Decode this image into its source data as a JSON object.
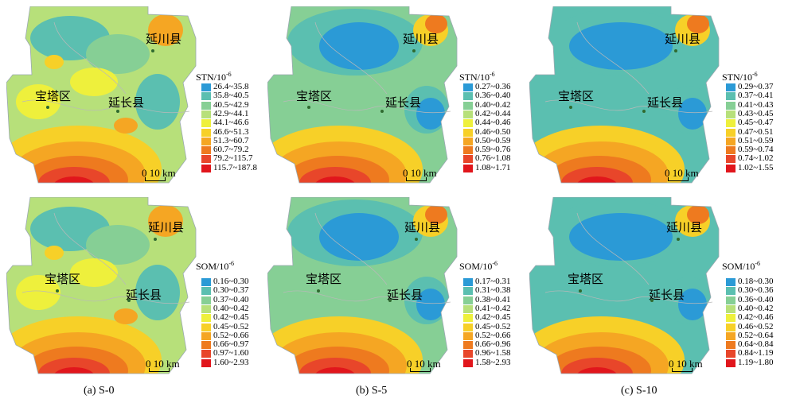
{
  "panels": [
    {
      "id": "S-0",
      "stn": {
        "title": "STN/10",
        "title_exp": "-6",
        "classes": [
          "26.4~35.8",
          "35.8~40.5",
          "40.5~42.9",
          "42.9~44.1",
          "44.1~46.6",
          "46.6~51.3",
          "51.3~60.7",
          "60.7~79.2",
          "79.2~115.7",
          "115.7~187.8"
        ]
      },
      "som": {
        "title": "SOM/10",
        "title_exp": "-6",
        "classes": [
          "0.16~0.30",
          "0.30~0.37",
          "0.37~0.40",
          "0.40~0.42",
          "0.42~0.45",
          "0.45~0.52",
          "0.52~0.66",
          "0.66~0.97",
          "0.97~1.60",
          "1.60~2.93"
        ]
      }
    },
    {
      "id": "S-5",
      "stn": {
        "title": "STN/10",
        "title_exp": "-6",
        "classes": [
          "0.27~0.36",
          "0.36~0.40",
          "0.40~0.42",
          "0.42~0.44",
          "0.44~0.46",
          "0.46~0.50",
          "0.50~0.59",
          "0.59~0.76",
          "0.76~1.08",
          "1.08~1.71"
        ]
      },
      "som": {
        "title": "SOM/10",
        "title_exp": "-6",
        "classes": [
          "0.17~0.31",
          "0.31~0.38",
          "0.38~0.41",
          "0.41~0.42",
          "0.42~0.45",
          "0.45~0.52",
          "0.52~0.66",
          "0.66~0.96",
          "0.96~1.58",
          "1.58~2.93"
        ]
      }
    },
    {
      "id": "S-10",
      "stn": {
        "title": "STN/10",
        "title_exp": "-6",
        "classes": [
          "0.29~0.37",
          "0.37~0.41",
          "0.41~0.43",
          "0.43~0.45",
          "0.45~0.47",
          "0.47~0.51",
          "0.51~0.59",
          "0.59~0.74",
          "0.74~1.02",
          "1.02~1.55"
        ]
      },
      "som": {
        "title": "SOM/10",
        "title_exp": "-6",
        "classes": [
          "0.18~0.30",
          "0.30~0.36",
          "0.36~0.40",
          "0.40~0.42",
          "0.42~0.46",
          "0.46~0.52",
          "0.52~0.64",
          "0.64~0.84",
          "0.84~1.19",
          "1.19~1.80"
        ]
      }
    }
  ],
  "places": {
    "yanchuan": "延川县",
    "baota": "宝塔区",
    "yanchang": "延长县"
  },
  "scale_label": "0  10 km",
  "captions": [
    "(a) S-0",
    "(b) S-5",
    "(c) S-10"
  ],
  "colors": [
    "#2b9ad6",
    "#5bbfb0",
    "#86cf95",
    "#b7e07a",
    "#eef03c",
    "#f7d028",
    "#f5a623",
    "#ee7a1f",
    "#e8462a",
    "#e1161c"
  ]
}
